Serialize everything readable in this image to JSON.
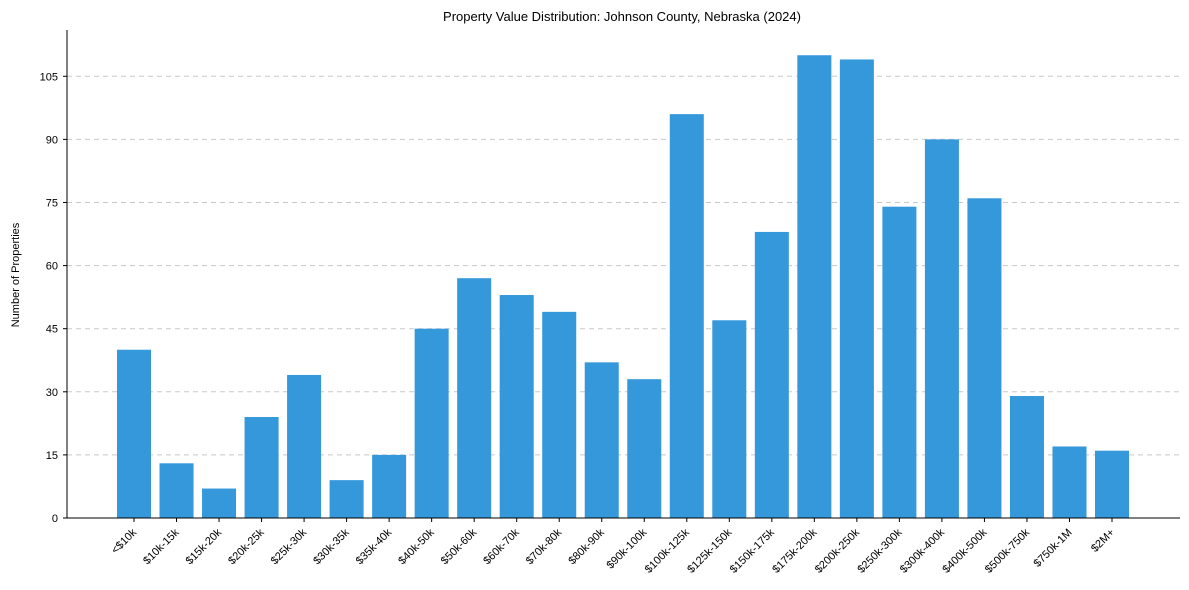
{
  "chart_data": {
    "type": "bar",
    "title": "Property Value Distribution: Johnson County, Nebraska (2024)",
    "xlabel": "",
    "ylabel": "Number of Properties",
    "ylim": [
      0,
      116
    ],
    "yticks": [
      0,
      15,
      30,
      45,
      60,
      75,
      90,
      105
    ],
    "grid": "y-dashed",
    "bar_color": "#3498db",
    "categories": [
      "<$10k",
      "$10k-15k",
      "$15k-20k",
      "$20k-25k",
      "$25k-30k",
      "$30k-35k",
      "$35k-40k",
      "$40k-50k",
      "$50k-60k",
      "$60k-70k",
      "$70k-80k",
      "$80k-90k",
      "$90k-100k",
      "$100k-125k",
      "$125k-150k",
      "$150k-175k",
      "$175k-200k",
      "$200k-250k",
      "$250k-300k",
      "$300k-400k",
      "$400k-500k",
      "$500k-750k",
      "$750k-1M",
      "$2M+"
    ],
    "values": [
      40,
      13,
      7,
      24,
      34,
      9,
      15,
      45,
      57,
      53,
      49,
      37,
      33,
      96,
      47,
      68,
      110,
      109,
      74,
      90,
      76,
      29,
      17,
      16
    ]
  }
}
